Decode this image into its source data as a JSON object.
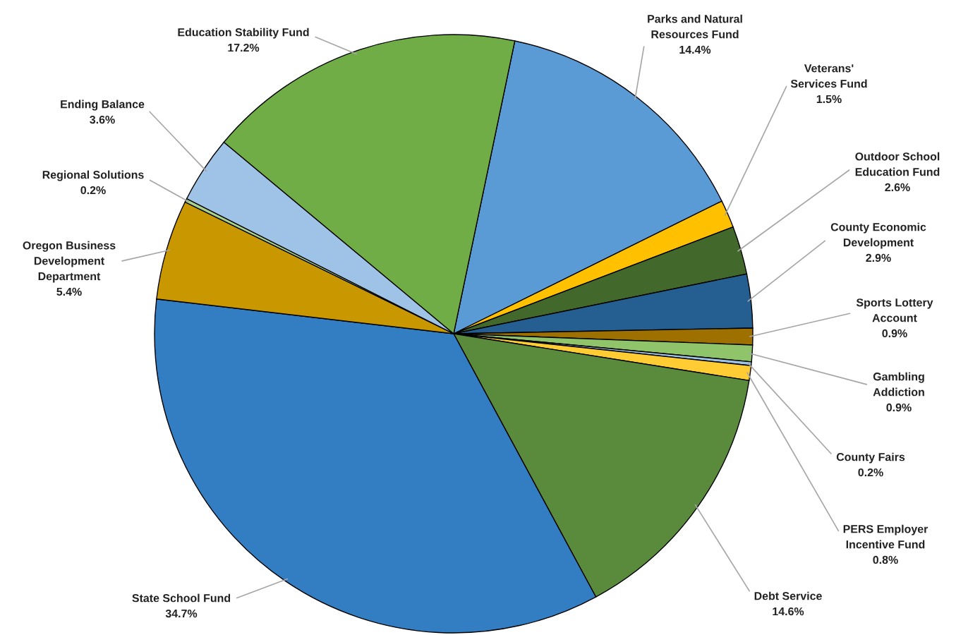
{
  "chart_data": {
    "type": "pie",
    "categories": [
      "Parks and Natural\nResources Fund",
      "Veterans'\nServices Fund",
      "Outdoor School\nEducation Fund",
      "County Economic\nDevelopment",
      "Sports Lottery\nAccount",
      "Gambling\nAddiction",
      "County Fairs",
      "PERS Employer\nIncentive Fund",
      "Debt Service",
      "State School Fund",
      "Oregon Business\nDevelopment\nDepartment",
      "Regional Solutions",
      "Ending Balance",
      "Education Stability Fund"
    ],
    "values": [
      14.4,
      1.5,
      2.6,
      2.9,
      0.9,
      0.9,
      0.2,
      0.8,
      14.6,
      34.7,
      5.4,
      0.2,
      3.6,
      17.2
    ],
    "value_labels": [
      "14.4%",
      "1.5%",
      "2.6%",
      "2.9%",
      "0.9%",
      "0.9%",
      "0.2%",
      "0.8%",
      "14.6%",
      "34.7%",
      "5.4%",
      "0.2%",
      "3.6%",
      "17.2%"
    ],
    "colors": [
      "#5b9bd5",
      "#ffc000",
      "#43682b",
      "#255e91",
      "#9e7000",
      "#8fc46a",
      "#9dc3e6",
      "#ffcd33",
      "#5a8a3c",
      "#337ec2",
      "#c99800",
      "#a9d18e",
      "#9fc3e6",
      "#70ad47"
    ]
  }
}
